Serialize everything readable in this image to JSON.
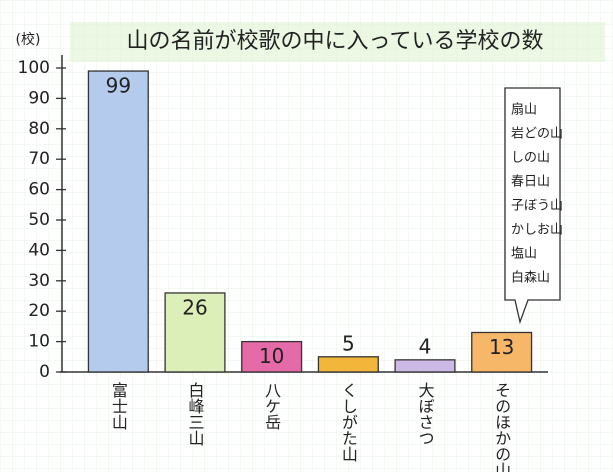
{
  "chart_data": {
    "type": "bar",
    "title": "山の名前が校歌の中に入っている学校の数",
    "y_label": "(校)",
    "categories": [
      "富士山",
      "白峰三山",
      "八ケ岳",
      "くしがた山",
      "大ぼさつ",
      "そのほかの山"
    ],
    "values": [
      99,
      26,
      10,
      5,
      4,
      13
    ],
    "colors": [
      "#b4cbee",
      "#dcefb8",
      "#e46aa8",
      "#f2b63a",
      "#cdb9e6",
      "#f6b868"
    ],
    "ylim": [
      0,
      100
    ],
    "yticks": [
      0,
      10,
      20,
      30,
      40,
      50,
      60,
      70,
      80,
      90,
      100
    ],
    "annotation": [
      "扇山",
      "岩どの山",
      "しの山",
      "春日山",
      "子ぼう山",
      "かしお山",
      "塩山",
      "白森山"
    ]
  }
}
